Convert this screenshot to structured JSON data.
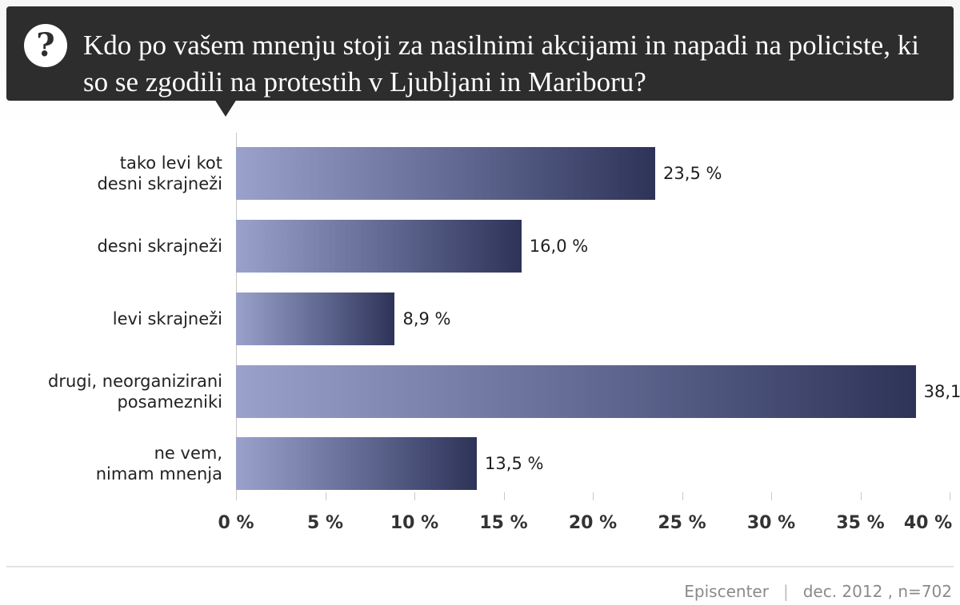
{
  "chart_data": {
    "type": "bar",
    "orientation": "horizontal",
    "title": "Kdo po vašem mnenju stoji za nasilnimi akcijami in napadi na policiste, ki so se zgodili na protestih v Ljubljani in Mariboru?",
    "categories": [
      "tako levi kot\ndesni skrajneži",
      "desni skrajneži",
      "levi skrajneži",
      "drugi, neorganizirani\nposamezniki",
      "ne vem,\nnimam mnenja"
    ],
    "values": [
      23.5,
      16.0,
      8.9,
      38.1,
      13.5
    ],
    "value_labels": [
      "23,5 %",
      "16,0 %",
      "8,9 %",
      "38,1",
      "13,5 %"
    ],
    "xlim": [
      0,
      40
    ],
    "xticks": [
      0,
      5,
      10,
      15,
      20,
      25,
      30,
      35,
      40
    ],
    "xtick_labels": [
      "0 %",
      "5 %",
      "10 %",
      "15 %",
      "20 %",
      "25 %",
      "30 %",
      "35 %",
      "40 %"
    ],
    "xlabel": "",
    "ylabel": "",
    "grid": false,
    "colors": {
      "bar_start": "#9aa2cc",
      "bar_end": "#2e3358",
      "header_bg": "#2d2d2d"
    }
  },
  "header": {
    "icon": "question-mark-icon",
    "icon_glyph": "?"
  },
  "footer": {
    "source": "Episcenter",
    "separator": "|",
    "meta": "dec. 2012 , n=702"
  }
}
